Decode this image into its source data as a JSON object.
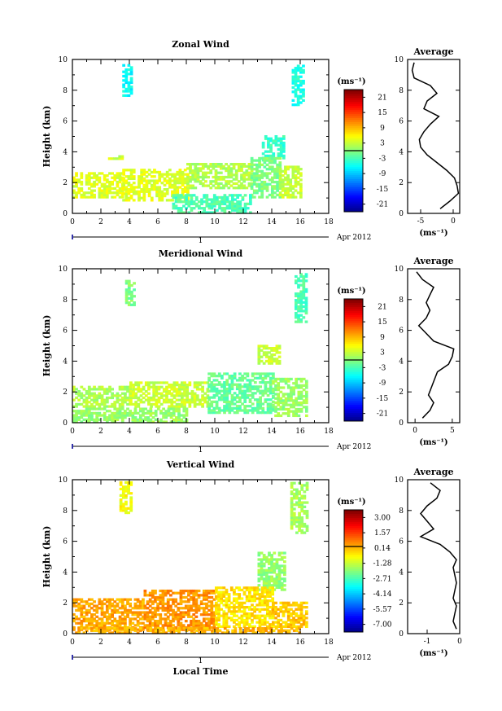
{
  "panels": [
    {
      "title": "Zonal Wind",
      "ylabel": "Height (km)",
      "xticks": [
        "0",
        "2",
        "4",
        "6",
        "8",
        "10",
        "12",
        "14",
        "16",
        "18"
      ],
      "yticks": [
        "0",
        "2",
        "4",
        "6",
        "8",
        "10"
      ],
      "date_label": "Apr 2012",
      "day_label": "1",
      "colorbar": {
        "unit": "(ms⁻¹)",
        "ticks": [
          "21",
          "15",
          "9",
          "3",
          "-3",
          "-9",
          "-15",
          "-21"
        ]
      },
      "avg": {
        "title": "Average",
        "xticks": [
          "-5",
          "0"
        ],
        "xunit": "(ms⁻¹)",
        "yticks": [
          "0",
          "2",
          "4",
          "6",
          "8",
          "10"
        ]
      }
    },
    {
      "title": "Meridional Wind",
      "ylabel": "Height (km)",
      "xticks": [
        "0",
        "2",
        "4",
        "6",
        "8",
        "10",
        "12",
        "14",
        "16",
        "18"
      ],
      "yticks": [
        "0",
        "2",
        "4",
        "6",
        "8",
        "10"
      ],
      "date_label": "Apr 2012",
      "day_label": "1",
      "colorbar": {
        "unit": "(ms⁻¹)",
        "ticks": [
          "21",
          "15",
          "9",
          "3",
          "-3",
          "-9",
          "-15",
          "-21"
        ]
      },
      "avg": {
        "title": "Average",
        "xticks": [
          "0",
          "5"
        ],
        "xunit": "(ms⁻¹)",
        "yticks": [
          "0",
          "2",
          "4",
          "6",
          "8",
          "10"
        ]
      }
    },
    {
      "title": "Vertical Wind",
      "ylabel": "Height (km)",
      "xlabel": "Local Time",
      "xticks": [
        "0",
        "2",
        "4",
        "6",
        "8",
        "10",
        "12",
        "14",
        "16",
        "18"
      ],
      "yticks": [
        "0",
        "2",
        "4",
        "6",
        "8",
        "10"
      ],
      "date_label": "Apr 2012",
      "day_label": "1",
      "colorbar": {
        "unit": "(ms⁻¹)",
        "ticks": [
          "3.00",
          "1.57",
          "0.14",
          "-1.28",
          "-2.71",
          "-4.14",
          "-5.57",
          "-7.00"
        ]
      },
      "avg": {
        "title": "Average",
        "xticks": [
          "-1",
          "0"
        ],
        "xunit": "(ms⁻¹)",
        "yticks": [
          "0",
          "2",
          "4",
          "6",
          "8",
          "10"
        ]
      }
    }
  ],
  "chart_data": [
    {
      "type": "heatmap",
      "title": "Zonal Wind",
      "xlabel": "",
      "ylabel": "Height (km)",
      "xlim": [
        0,
        18
      ],
      "ylim": [
        0,
        10
      ],
      "clim": [
        -21,
        21
      ],
      "colormap": "jet",
      "regions": [
        {
          "t": [
            3.5,
            4.2
          ],
          "h": [
            7.6,
            9.6
          ],
          "v": -5
        },
        {
          "t": [
            15.4,
            16.3
          ],
          "h": [
            7.0,
            9.6
          ],
          "v": -4
        },
        {
          "t": [
            13.3,
            14.8
          ],
          "h": [
            3.4,
            5.0
          ],
          "v": -3
        },
        {
          "t": [
            0.0,
            3.5
          ],
          "h": [
            1.0,
            2.6
          ],
          "v": 4
        },
        {
          "t": [
            3.5,
            8.0
          ],
          "h": [
            0.8,
            2.8
          ],
          "v": 4
        },
        {
          "t": [
            8.0,
            12.5
          ],
          "h": [
            1.6,
            3.2
          ],
          "v": 2
        },
        {
          "t": [
            12.5,
            14.5
          ],
          "h": [
            1.0,
            3.6
          ],
          "v": 0
        },
        {
          "t": [
            14.5,
            16.0
          ],
          "h": [
            1.0,
            3.0
          ],
          "v": 3
        },
        {
          "t": [
            7.0,
            12.5
          ],
          "h": [
            0.0,
            1.2
          ],
          "v": -2
        },
        {
          "t": [
            2.5,
            3.5
          ],
          "h": [
            3.5,
            3.7
          ],
          "v": 3
        }
      ],
      "profile": {
        "xlim": [
          -7,
          1
        ],
        "h": [
          0.3,
          0.8,
          1.3,
          1.8,
          2.3,
          2.8,
          3.3,
          3.8,
          4.3,
          4.8,
          5.3,
          5.8,
          6.3,
          6.8,
          7.3,
          7.8,
          8.3,
          8.8,
          9.3,
          9.8
        ],
        "v": [
          -2.0,
          -0.5,
          0.8,
          0.6,
          0.2,
          -1.0,
          -2.5,
          -4.0,
          -5.0,
          -5.2,
          -4.5,
          -3.5,
          -2.2,
          -4.5,
          -4.0,
          -2.5,
          -3.5,
          -6.0,
          -6.3,
          -6.0
        ]
      }
    },
    {
      "type": "heatmap",
      "title": "Meridional Wind",
      "xlabel": "",
      "ylabel": "Height (km)",
      "xlim": [
        0,
        18
      ],
      "ylim": [
        0,
        10
      ],
      "clim": [
        -21,
        21
      ],
      "colormap": "jet",
      "regions": [
        {
          "t": [
            3.7,
            4.3
          ],
          "h": [
            7.6,
            9.2
          ],
          "v": 0
        },
        {
          "t": [
            15.6,
            16.4
          ],
          "h": [
            6.5,
            9.6
          ],
          "v": -2
        },
        {
          "t": [
            13.0,
            14.6
          ],
          "h": [
            3.8,
            5.0
          ],
          "v": 3
        },
        {
          "t": [
            0.0,
            4.0
          ],
          "h": [
            1.0,
            2.4
          ],
          "v": 2
        },
        {
          "t": [
            4.0,
            9.5
          ],
          "h": [
            1.0,
            2.6
          ],
          "v": 3
        },
        {
          "t": [
            9.5,
            14.0
          ],
          "h": [
            0.6,
            3.2
          ],
          "v": -1
        },
        {
          "t": [
            14.0,
            16.5
          ],
          "h": [
            0.4,
            2.8
          ],
          "v": 1
        },
        {
          "t": [
            0.0,
            8.0
          ],
          "h": [
            0.0,
            0.9
          ],
          "v": 1
        }
      ],
      "profile": {
        "xlim": [
          -1,
          6
        ],
        "h": [
          0.3,
          0.8,
          1.3,
          1.8,
          2.3,
          2.8,
          3.3,
          3.8,
          4.3,
          4.8,
          5.3,
          5.8,
          6.3,
          6.8,
          7.3,
          7.8,
          8.3,
          8.8,
          9.3,
          9.8
        ],
        "v": [
          1.0,
          2.0,
          2.5,
          1.8,
          2.2,
          2.6,
          3.0,
          4.5,
          5.0,
          5.2,
          2.5,
          1.5,
          0.5,
          1.5,
          2.0,
          1.5,
          2.0,
          2.5,
          1.0,
          0.2
        ]
      }
    },
    {
      "type": "heatmap",
      "title": "Vertical Wind",
      "xlabel": "Local Time",
      "ylabel": "Height (km)",
      "xlim": [
        0,
        18
      ],
      "ylim": [
        0,
        10
      ],
      "clim": [
        -7.0,
        3.0
      ],
      "colormap": "jet",
      "regions": [
        {
          "t": [
            3.3,
            4.2
          ],
          "h": [
            7.8,
            9.8
          ],
          "v": -0.8
        },
        {
          "t": [
            15.3,
            16.4
          ],
          "h": [
            6.5,
            9.8
          ],
          "v": -1.6
        },
        {
          "t": [
            13.0,
            14.8
          ],
          "h": [
            2.8,
            5.2
          ],
          "v": -1.8
        },
        {
          "t": [
            0.0,
            5.0
          ],
          "h": [
            0.2,
            2.2
          ],
          "v": 0.1
        },
        {
          "t": [
            5.0,
            10.0
          ],
          "h": [
            0.2,
            2.8
          ],
          "v": 0.3
        },
        {
          "t": [
            10.0,
            14.0
          ],
          "h": [
            0.4,
            3.0
          ],
          "v": -0.5
        },
        {
          "t": [
            14.0,
            16.5
          ],
          "h": [
            0.4,
            2.0
          ],
          "v": -0.2
        },
        {
          "t": [
            0.0,
            16.0
          ],
          "h": [
            0.0,
            0.4
          ],
          "v": 0.0
        }
      ],
      "profile": {
        "xlim": [
          -1.6,
          0
        ],
        "h": [
          0.3,
          0.8,
          1.3,
          1.8,
          2.3,
          2.8,
          3.3,
          3.8,
          4.3,
          4.8,
          5.3,
          5.8,
          6.3,
          6.8,
          7.3,
          7.8,
          8.3,
          8.8,
          9.3,
          9.8
        ],
        "v": [
          -0.1,
          -0.2,
          -0.15,
          -0.1,
          -0.2,
          -0.15,
          -0.1,
          -0.15,
          -0.2,
          -0.1,
          -0.3,
          -0.6,
          -1.2,
          -0.8,
          -1.0,
          -1.2,
          -1.0,
          -0.7,
          -0.6,
          -0.9
        ]
      }
    }
  ]
}
